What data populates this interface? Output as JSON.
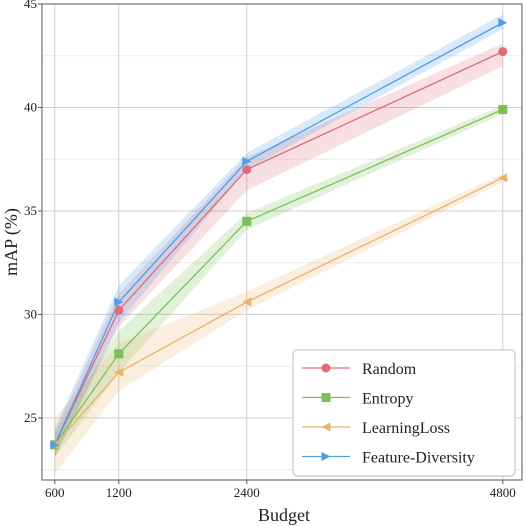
{
  "chart_data": {
    "type": "line",
    "xlabel": "Budget",
    "ylabel": "mAP (%)",
    "x": [
      600,
      1200,
      2400,
      4800
    ],
    "x_ticks": [
      "600",
      "1200",
      "2400",
      "4800"
    ],
    "y_ticks": [
      "25",
      "30",
      "35",
      "40",
      "45"
    ],
    "xlim": [
      480,
      4980
    ],
    "ylim": [
      22,
      45
    ],
    "grid": true,
    "legend_position": "bottom-right",
    "series": [
      {
        "name": "Random",
        "color": "#e06c7a",
        "marker": "circle",
        "values": [
          23.7,
          30.2,
          37.0,
          42.7
        ],
        "band_lower": [
          23.1,
          29.4,
          36.0,
          42.0
        ],
        "band_upper": [
          24.3,
          31.0,
          37.6,
          43.1
        ]
      },
      {
        "name": "Entropy",
        "color": "#7cbf57",
        "marker": "square",
        "values": [
          23.7,
          28.1,
          34.5,
          39.9
        ],
        "band_lower": [
          23.1,
          27.2,
          34.1,
          39.7
        ],
        "band_upper": [
          24.3,
          29.2,
          34.9,
          40.1
        ]
      },
      {
        "name": "LearningLoss",
        "color": "#e8b36a",
        "marker": "triangle-left",
        "values": [
          23.7,
          27.2,
          30.6,
          36.6
        ],
        "band_lower": [
          22.3,
          26.3,
          30.2,
          36.4
        ],
        "band_upper": [
          25.0,
          28.6,
          31.1,
          36.8
        ]
      },
      {
        "name": "Feature-Diversity",
        "color": "#4f9ee6",
        "marker": "triangle-right",
        "values": [
          23.7,
          30.6,
          37.4,
          44.1
        ],
        "band_lower": [
          23.1,
          29.6,
          37.0,
          43.8
        ],
        "band_upper": [
          24.5,
          31.4,
          37.8,
          44.5
        ]
      }
    ]
  }
}
